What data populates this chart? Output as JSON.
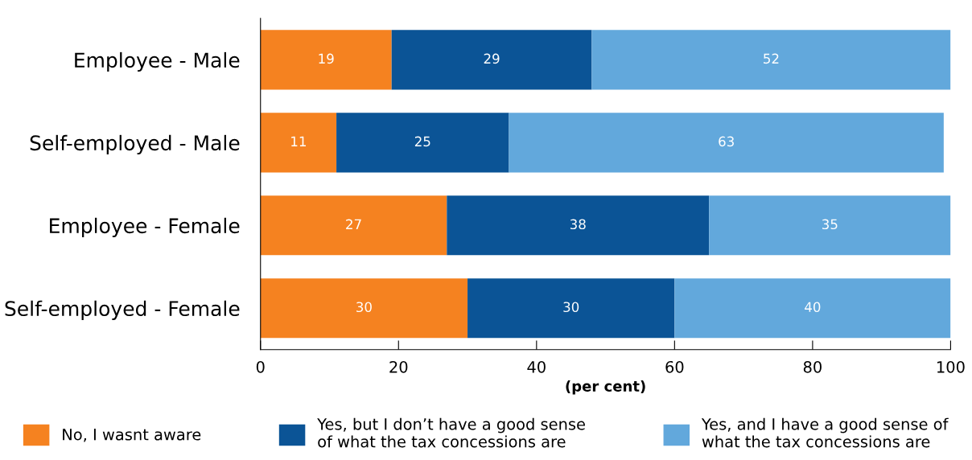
{
  "chart_data": {
    "type": "bar",
    "orientation": "horizontal",
    "stacked": true,
    "xlabel": "(per cent)",
    "categories": [
      "Employee - Male",
      "Self-employed - Male",
      "Employee - Female",
      "Self-employed - Female"
    ],
    "series": [
      {
        "name": "No, I wasnt aware",
        "color": "#f58220",
        "values": [
          19,
          11,
          27,
          30
        ]
      },
      {
        "name": "Yes, but I don’t have a good sense\nof what the tax concessions are",
        "color": "#0b5496",
        "values": [
          29,
          25,
          38,
          30
        ]
      },
      {
        "name": "Yes, and I have a good sense of\nwhat the tax concessions are",
        "color": "#62a8dc",
        "values": [
          52,
          63,
          35,
          40
        ]
      }
    ],
    "xlim": [
      0,
      100
    ],
    "xticks": [
      0,
      20,
      40,
      60,
      80,
      100
    ],
    "grid": false,
    "legend": "bottom",
    "data_labels": true
  }
}
